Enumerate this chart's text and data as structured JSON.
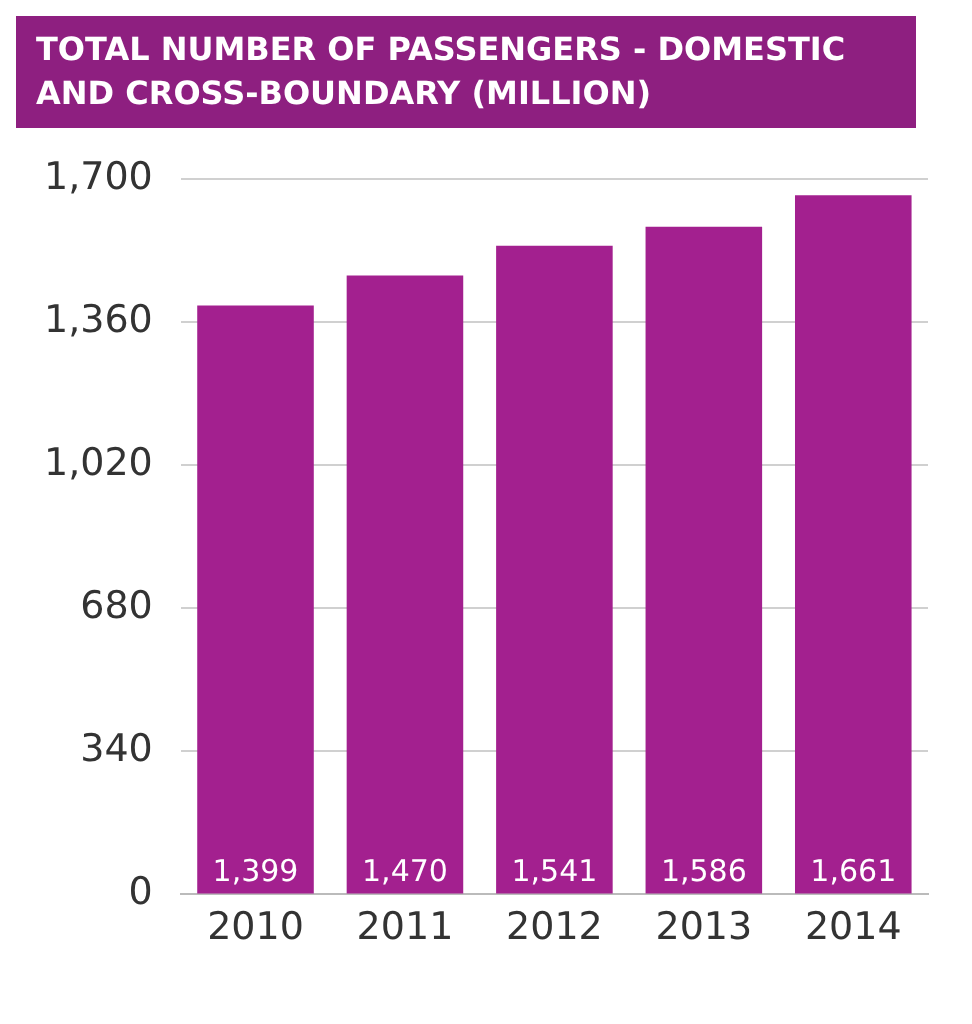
{
  "chart_data": {
    "type": "bar",
    "title": "TOTAL NUMBER OF PASSENGERS - DOMESTIC AND CROSS-BOUNDARY (MILLION)",
    "categories": [
      "2010",
      "2011",
      "2012",
      "2013",
      "2014"
    ],
    "values": [
      1399,
      1470,
      1541,
      1586,
      1661
    ],
    "value_labels": [
      "1,399",
      "1,470",
      "1,541",
      "1,586",
      "1,661"
    ],
    "color": "#a3208f",
    "ylim": [
      0,
      1700
    ],
    "yticks": [
      {
        "value": 0,
        "label": "0"
      },
      {
        "value": 340,
        "label": "340"
      },
      {
        "value": 680,
        "label": "680"
      },
      {
        "value": 1020,
        "label": "1,020"
      },
      {
        "value": 1360,
        "label": "1,360"
      },
      {
        "value": 1700,
        "label": "1,700"
      }
    ],
    "grid": "y",
    "legend": false
  }
}
